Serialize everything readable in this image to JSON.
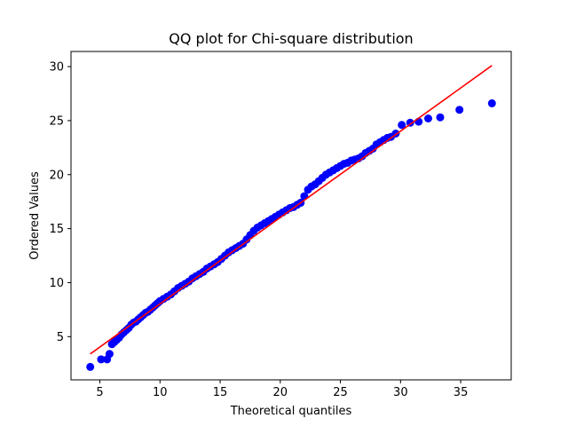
{
  "chart_data": {
    "type": "scatter",
    "title": "QQ plot for Chi-square distribution",
    "xlabel": "Theoretical quantiles",
    "ylabel": "Ordered Values",
    "xlim": [
      2.6,
      39.2
    ],
    "ylim": [
      1.0,
      31.4
    ],
    "xticks": [
      5,
      10,
      15,
      20,
      25,
      30,
      35
    ],
    "yticks": [
      5,
      10,
      15,
      20,
      25,
      30
    ],
    "grid": false,
    "legend": "none",
    "colors": {
      "points": "#0000ff",
      "line": "#ff0000"
    },
    "fit_line": {
      "x": [
        4.2,
        37.6
      ],
      "y": [
        3.4,
        30.1
      ]
    },
    "series": [
      {
        "x": [
          4.2,
          5.1,
          5.6,
          5.8,
          6.0,
          6.2,
          6.4,
          6.6,
          6.8,
          7.0,
          7.2,
          7.4,
          7.6,
          7.8,
          8.0,
          8.2,
          8.4,
          8.6,
          8.8,
          9.0,
          9.2,
          9.4,
          9.6,
          9.8,
          10.0,
          10.3,
          10.6,
          10.9,
          11.2,
          11.5,
          11.8,
          12.1,
          12.4,
          12.7,
          13.0,
          13.3,
          13.6,
          13.9,
          14.2,
          14.5,
          14.8,
          15.1,
          15.4,
          15.7,
          16.0,
          16.3,
          16.6,
          16.9,
          17.2,
          17.5,
          17.8,
          18.1,
          18.4,
          18.7,
          19.0,
          19.3,
          19.6,
          19.9,
          20.2,
          20.5,
          20.8,
          21.1,
          21.4,
          21.7,
          22.0,
          22.3,
          22.6,
          22.9,
          23.2,
          23.5,
          23.8,
          24.1,
          24.4,
          24.7,
          25.0,
          25.3,
          25.6,
          25.9,
          26.2,
          26.5,
          26.8,
          27.1,
          27.4,
          27.7,
          28.0,
          28.3,
          28.6,
          28.9,
          29.2,
          29.6,
          30.1,
          30.8,
          31.5,
          32.3,
          33.3,
          34.9,
          37.6
        ],
        "y": [
          2.2,
          2.9,
          2.9,
          3.4,
          4.3,
          4.5,
          4.7,
          4.9,
          5.2,
          5.4,
          5.6,
          5.8,
          6.1,
          6.3,
          6.4,
          6.6,
          6.8,
          7.0,
          7.2,
          7.3,
          7.5,
          7.7,
          7.9,
          8.1,
          8.3,
          8.5,
          8.7,
          8.9,
          9.2,
          9.5,
          9.7,
          9.9,
          10.1,
          10.4,
          10.6,
          10.8,
          11.0,
          11.3,
          11.5,
          11.7,
          11.9,
          12.2,
          12.5,
          12.8,
          13.0,
          13.2,
          13.4,
          13.6,
          14.0,
          14.4,
          14.8,
          15.1,
          15.3,
          15.5,
          15.7,
          15.9,
          16.1,
          16.3,
          16.5,
          16.7,
          16.9,
          17.0,
          17.2,
          17.4,
          18.0,
          18.6,
          18.9,
          19.1,
          19.4,
          19.7,
          20.0,
          20.2,
          20.4,
          20.6,
          20.8,
          21.0,
          21.1,
          21.3,
          21.4,
          21.5,
          21.7,
          22.0,
          22.2,
          22.4,
          22.8,
          23.0,
          23.2,
          23.4,
          23.5,
          23.8,
          24.6,
          24.8,
          24.9,
          25.2,
          25.3,
          26.0,
          26.6
        ]
      }
    ]
  }
}
